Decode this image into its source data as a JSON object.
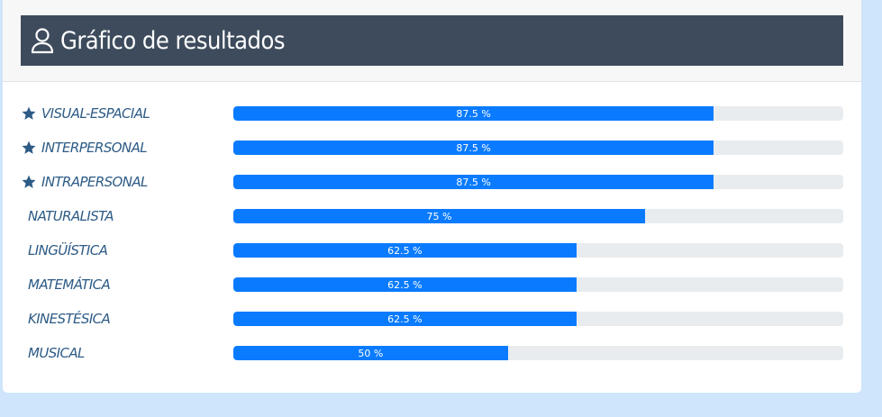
{
  "header": {
    "title": "Gráfico de resultados",
    "icon": "user-icon"
  },
  "colors": {
    "bar": "#0a7bff",
    "track": "#e9ecef",
    "header_bg": "#3d4b5c",
    "label": "#2d5b86"
  },
  "results": [
    {
      "label": "VISUAL-ESPACIAL",
      "percent": 87.5,
      "text": "87.5 %",
      "starred": true
    },
    {
      "label": "INTERPERSONAL",
      "percent": 87.5,
      "text": "87.5 %",
      "starred": true
    },
    {
      "label": "INTRAPERSONAL",
      "percent": 87.5,
      "text": "87.5 %",
      "starred": true
    },
    {
      "label": "NATURALISTA",
      "percent": 75,
      "text": "75 %",
      "starred": false
    },
    {
      "label": "LINGÜÍSTICA",
      "percent": 62.5,
      "text": "62.5 %",
      "starred": false
    },
    {
      "label": "MATEMÁTICA",
      "percent": 62.5,
      "text": "62.5 %",
      "starred": false
    },
    {
      "label": "KINESTÉSICA",
      "percent": 62.5,
      "text": "62.5 %",
      "starred": false
    },
    {
      "label": "MUSICAL",
      "percent": 50,
      "text": "50 %",
      "starred": false
    }
  ]
}
